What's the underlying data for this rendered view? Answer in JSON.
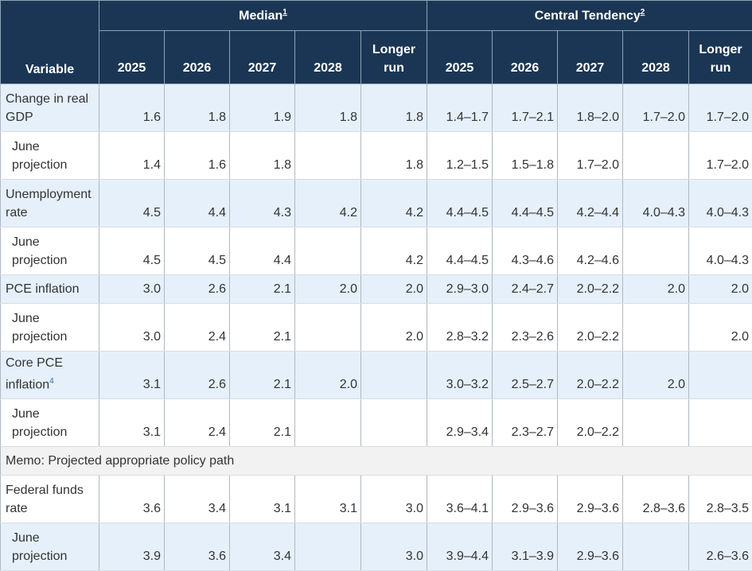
{
  "header": {
    "variable": "Variable",
    "median": "Median",
    "median_note": "1",
    "central": "Central Tendency",
    "central_note": "2",
    "years": [
      "2025",
      "2026",
      "2027",
      "2028",
      "Longer run"
    ]
  },
  "rows": [
    {
      "label": "Change in real GDP",
      "median": [
        "1.6",
        "1.8",
        "1.9",
        "1.8",
        "1.8"
      ],
      "central": [
        "1.4–1.7",
        "1.7–2.1",
        "1.8–2.0",
        "1.7–2.0",
        "1.7–2.0"
      ]
    },
    {
      "label": "June projection",
      "median": [
        "1.4",
        "1.6",
        "1.8",
        "",
        "1.8"
      ],
      "central": [
        "1.2–1.5",
        "1.5–1.8",
        "1.7–2.0",
        "",
        "1.7–2.0"
      ]
    },
    {
      "label": "Unemployment rate",
      "median": [
        "4.5",
        "4.4",
        "4.3",
        "4.2",
        "4.2"
      ],
      "central": [
        "4.4–4.5",
        "4.4–4.5",
        "4.2–4.4",
        "4.0–4.3",
        "4.0–4.3"
      ]
    },
    {
      "label": "June projection",
      "median": [
        "4.5",
        "4.5",
        "4.4",
        "",
        "4.2"
      ],
      "central": [
        "4.4–4.5",
        "4.3–4.6",
        "4.2–4.6",
        "",
        "4.0–4.3"
      ]
    },
    {
      "label": "PCE inflation",
      "median": [
        "3.0",
        "2.6",
        "2.1",
        "2.0",
        "2.0"
      ],
      "central": [
        "2.9–3.0",
        "2.4–2.7",
        "2.0–2.2",
        "2.0",
        "2.0"
      ]
    },
    {
      "label": "June projection",
      "median": [
        "3.0",
        "2.4",
        "2.1",
        "",
        "2.0"
      ],
      "central": [
        "2.8–3.2",
        "2.3–2.6",
        "2.0–2.2",
        "",
        "2.0"
      ]
    },
    {
      "label": "Core PCE inflation",
      "note": "4",
      "median": [
        "3.1",
        "2.6",
        "2.1",
        "2.0",
        ""
      ],
      "central": [
        "3.0–3.2",
        "2.5–2.7",
        "2.0–2.2",
        "2.0",
        ""
      ]
    },
    {
      "label": "June projection",
      "median": [
        "3.1",
        "2.4",
        "2.1",
        "",
        ""
      ],
      "central": [
        "2.9–3.4",
        "2.3–2.7",
        "2.0–2.2",
        "",
        ""
      ]
    },
    {
      "memo": "Memo: Projected appropriate policy path"
    },
    {
      "label": "Federal funds rate",
      "median": [
        "3.6",
        "3.4",
        "3.1",
        "3.1",
        "3.0"
      ],
      "central": [
        "3.6–4.1",
        "2.9–3.6",
        "2.9–3.6",
        "2.8–3.6",
        "2.8–3.5"
      ]
    },
    {
      "label": "June projection",
      "median": [
        "3.9",
        "3.6",
        "3.4",
        "",
        "3.0"
      ],
      "central": [
        "3.9–4.4",
        "3.1–3.9",
        "2.9–3.6",
        "",
        "2.6–3.6"
      ]
    }
  ]
}
